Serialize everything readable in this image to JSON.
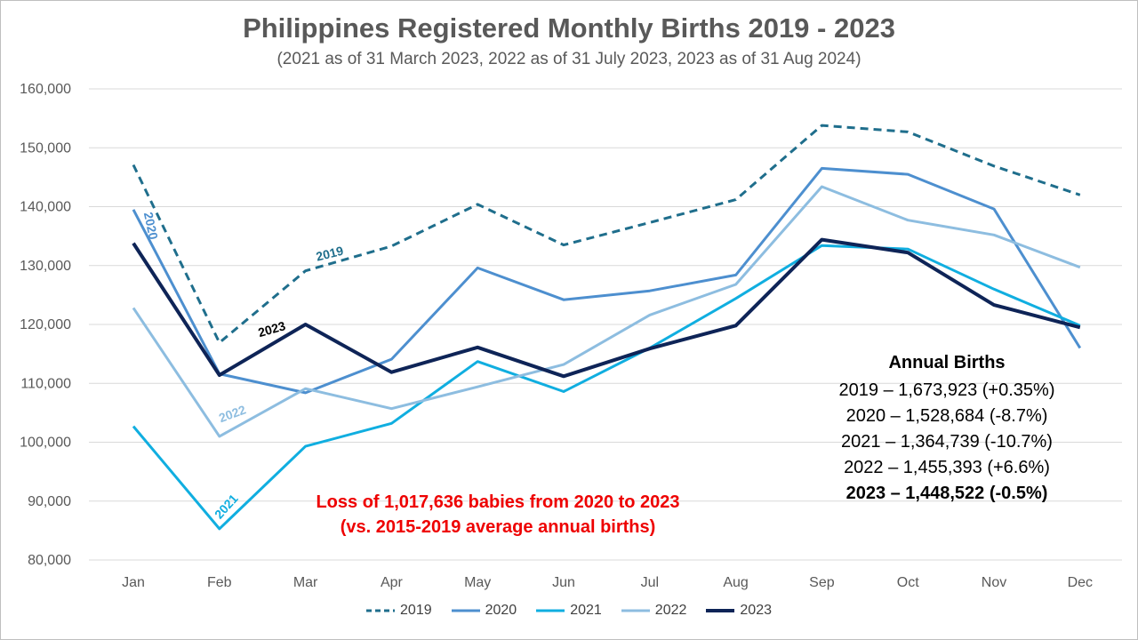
{
  "chart_data": {
    "type": "line",
    "title": "Philippines Registered Monthly Births 2019 - 2023",
    "subtitle": "(2021 as of 31 March 2023, 2022 as of 31 July 2023, 2023 as of 31 Aug 2024)",
    "categories": [
      "Jan",
      "Feb",
      "Mar",
      "Apr",
      "May",
      "Jun",
      "Jul",
      "Aug",
      "Sep",
      "Oct",
      "Nov",
      "Dec"
    ],
    "ylim": [
      80000,
      160000
    ],
    "yticks": [
      80000,
      90000,
      100000,
      110000,
      120000,
      130000,
      140000,
      150000,
      160000
    ],
    "ytick_labels": [
      "80,000",
      "90,000",
      "100,000",
      "110,000",
      "120,000",
      "130,000",
      "140,000",
      "150,000",
      "160,000"
    ],
    "grid": true,
    "legend_position": "bottom",
    "series": [
      {
        "name": "2019",
        "color": "#1f6e8c",
        "style": "dashed",
        "values": [
          147100,
          116900,
          129100,
          133300,
          140400,
          133500,
          137300,
          141200,
          153800,
          152700,
          146900,
          142000
        ]
      },
      {
        "name": "2020",
        "color": "#4d8fcf",
        "style": "solid",
        "values": [
          139500,
          111600,
          108400,
          114100,
          129600,
          124200,
          125700,
          128400,
          146500,
          145500,
          139600,
          116000
        ]
      },
      {
        "name": "2021",
        "color": "#10aee0",
        "style": "solid",
        "values": [
          102700,
          85300,
          99300,
          103200,
          113700,
          108600,
          116000,
          124400,
          133400,
          132800,
          126000,
          119800
        ]
      },
      {
        "name": "2022",
        "color": "#8dbde0",
        "style": "solid",
        "values": [
          122800,
          101000,
          109100,
          105700,
          109400,
          113200,
          121600,
          126800,
          143400,
          137700,
          135200,
          129700
        ]
      },
      {
        "name": "2023",
        "color": "#0e2457",
        "style": "solid",
        "values": [
          133800,
          111400,
          120000,
          111900,
          116100,
          111200,
          115900,
          119800,
          134400,
          132200,
          123300,
          119500
        ]
      }
    ],
    "series_labels": [
      {
        "series": "2019",
        "text": "2019"
      },
      {
        "series": "2020",
        "text": "2020"
      },
      {
        "series": "2021",
        "text": "2021"
      },
      {
        "series": "2022",
        "text": "2022"
      },
      {
        "series": "2023",
        "text": "2023"
      }
    ]
  },
  "annual_births": {
    "title": "Annual Births",
    "lines": [
      {
        "text": "2019 – 1,673,923 (+0.35%)",
        "bold": false
      },
      {
        "text": "2020 – 1,528,684 (-8.7%)",
        "bold": false
      },
      {
        "text": "2021 – 1,364,739 (-10.7%)",
        "bold": false
      },
      {
        "text": "2022 – 1,455,393 (+6.6%)",
        "bold": false
      },
      {
        "text": "2023 – 1,448,522 (-0.5%)",
        "bold": true
      }
    ]
  },
  "loss_note": {
    "line1": "Loss of 1,017,636 babies from 2020 to 2023",
    "line2": "(vs. 2015-2019 average annual births)",
    "color": "#ee0000"
  }
}
